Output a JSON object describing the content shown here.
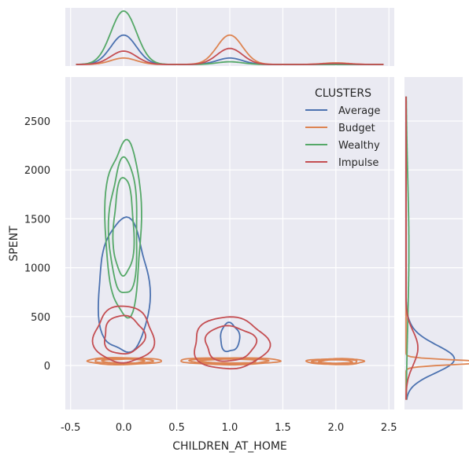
{
  "chart_data": {
    "type": "kde-jointplot",
    "xlabel": "CHILDREN_AT_HOME",
    "ylabel": "SPENT",
    "x_ticks": [
      "-0.5",
      "0.0",
      "0.5",
      "1.0",
      "1.5",
      "2.0",
      "2.5"
    ],
    "y_ticks": [
      "0",
      "500",
      "1000",
      "1500",
      "2000",
      "2500"
    ],
    "xlim": [
      -0.55,
      2.55
    ],
    "ylim": [
      -450,
      2950
    ],
    "grid": true,
    "legend": {
      "title": "CLUSTERS",
      "placement": "top-right"
    },
    "series": [
      {
        "name": "Average",
        "color": "#4c72b0",
        "groups": [
          {
            "x": 0,
            "y_center": 650,
            "y_low": 110,
            "y_high": 1470,
            "x_halfwidth": 0.24,
            "contour_levels": 1
          },
          {
            "x": 1,
            "y_center": 290,
            "y_low": 140,
            "y_high": 430,
            "x_halfwidth": 0.09,
            "contour_levels": 1
          }
        ],
        "marginal_x_density": [
          0.55,
          0.12,
          0.0
        ]
      },
      {
        "name": "Budget",
        "color": "#dd8452",
        "groups": [
          {
            "x": 0,
            "y_center": 40,
            "y_low": 10,
            "y_high": 80,
            "x_halfwidth": 0.35,
            "contour_levels": 3
          },
          {
            "x": 1,
            "y_center": 40,
            "y_low": 10,
            "y_high": 80,
            "x_halfwidth": 0.47,
            "contour_levels": 3
          },
          {
            "x": 2,
            "y_center": 35,
            "y_low": 10,
            "y_high": 70,
            "x_halfwidth": 0.27,
            "contour_levels": 3
          }
        ],
        "marginal_x_density": [
          0.12,
          0.55,
          0.03
        ]
      },
      {
        "name": "Wealthy",
        "color": "#55a868",
        "groups": [
          {
            "x": 0,
            "y_center": 1420,
            "y_low": 520,
            "y_high": 2290,
            "x_halfwidth": 0.17,
            "contour_levels": 3
          }
        ],
        "marginal_x_density": [
          1.0,
          0.05,
          0.0
        ]
      },
      {
        "name": "Impulse",
        "color": "#c44e52",
        "groups": [
          {
            "x": 0,
            "y_center": 280,
            "y_low": 20,
            "y_high": 600,
            "x_halfwidth": 0.28,
            "contour_levels": 2
          },
          {
            "x": 1,
            "y_center": 220,
            "y_low": -40,
            "y_high": 490,
            "x_halfwidth": 0.35,
            "contour_levels": 2
          }
        ],
        "marginal_x_density": [
          0.25,
          0.3,
          0.02
        ]
      }
    ]
  }
}
